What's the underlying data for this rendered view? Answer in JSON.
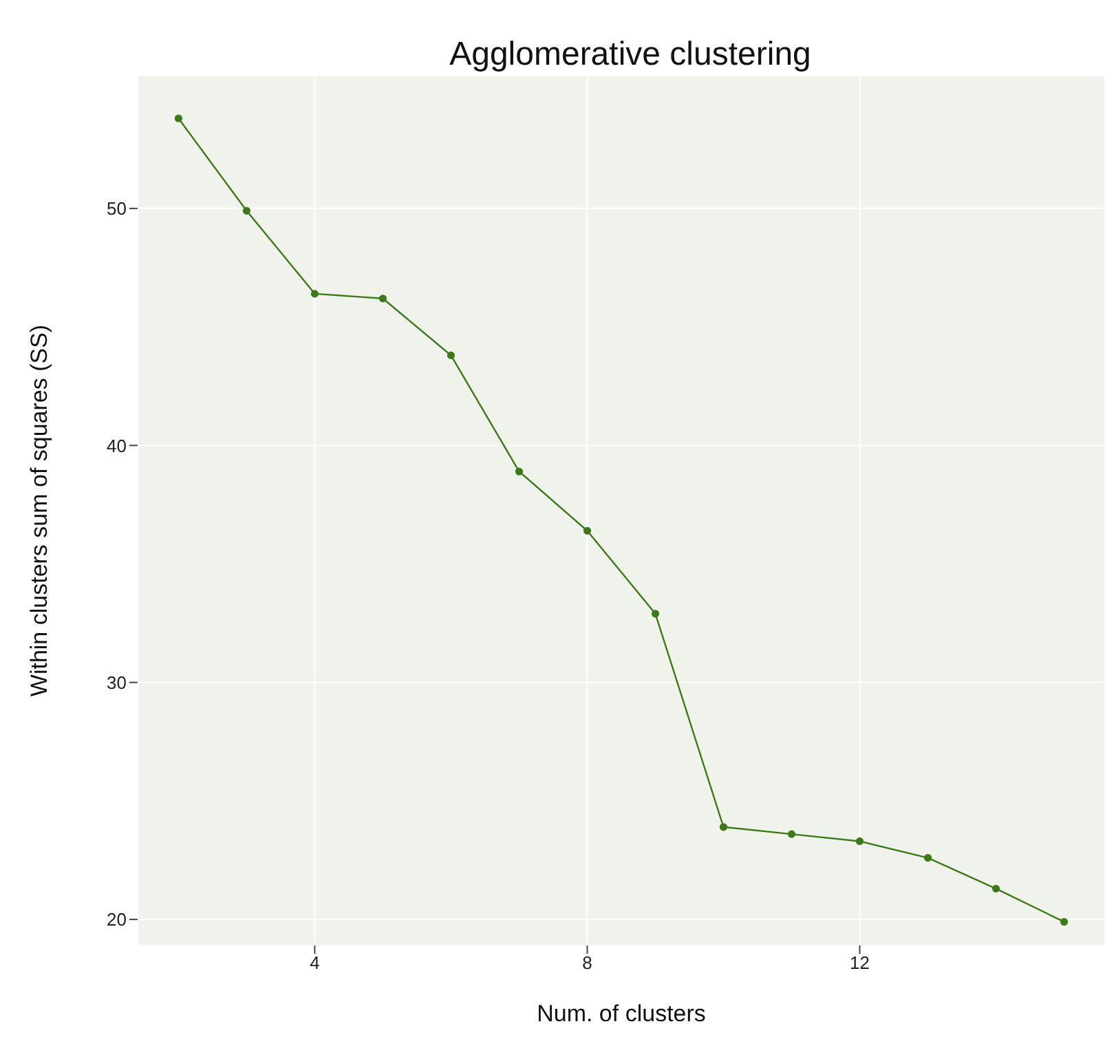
{
  "chart_data": {
    "type": "line",
    "title": "Agglomerative clustering",
    "xlabel": "Num. of clusters",
    "ylabel": "Within clusters sum of squares (SS)",
    "x": [
      2,
      3,
      4,
      5,
      6,
      7,
      8,
      9,
      10,
      11,
      12,
      13,
      14,
      15
    ],
    "series": [
      {
        "color": "#3b7a16",
        "values": [
          53.8,
          49.9,
          46.4,
          46.2,
          43.8,
          38.9,
          36.4,
          32.9,
          23.9,
          23.6,
          23.3,
          22.6,
          21.3,
          19.9
        ]
      }
    ],
    "xlim": [
      1.4,
      15.6
    ],
    "xticks": [
      4,
      8,
      12
    ],
    "ylim": [
      18.9,
      55.6
    ],
    "yticks": [
      20,
      30,
      40,
      50
    ],
    "grid": true,
    "marker": "circle",
    "line_style": "solid",
    "legend": false
  }
}
